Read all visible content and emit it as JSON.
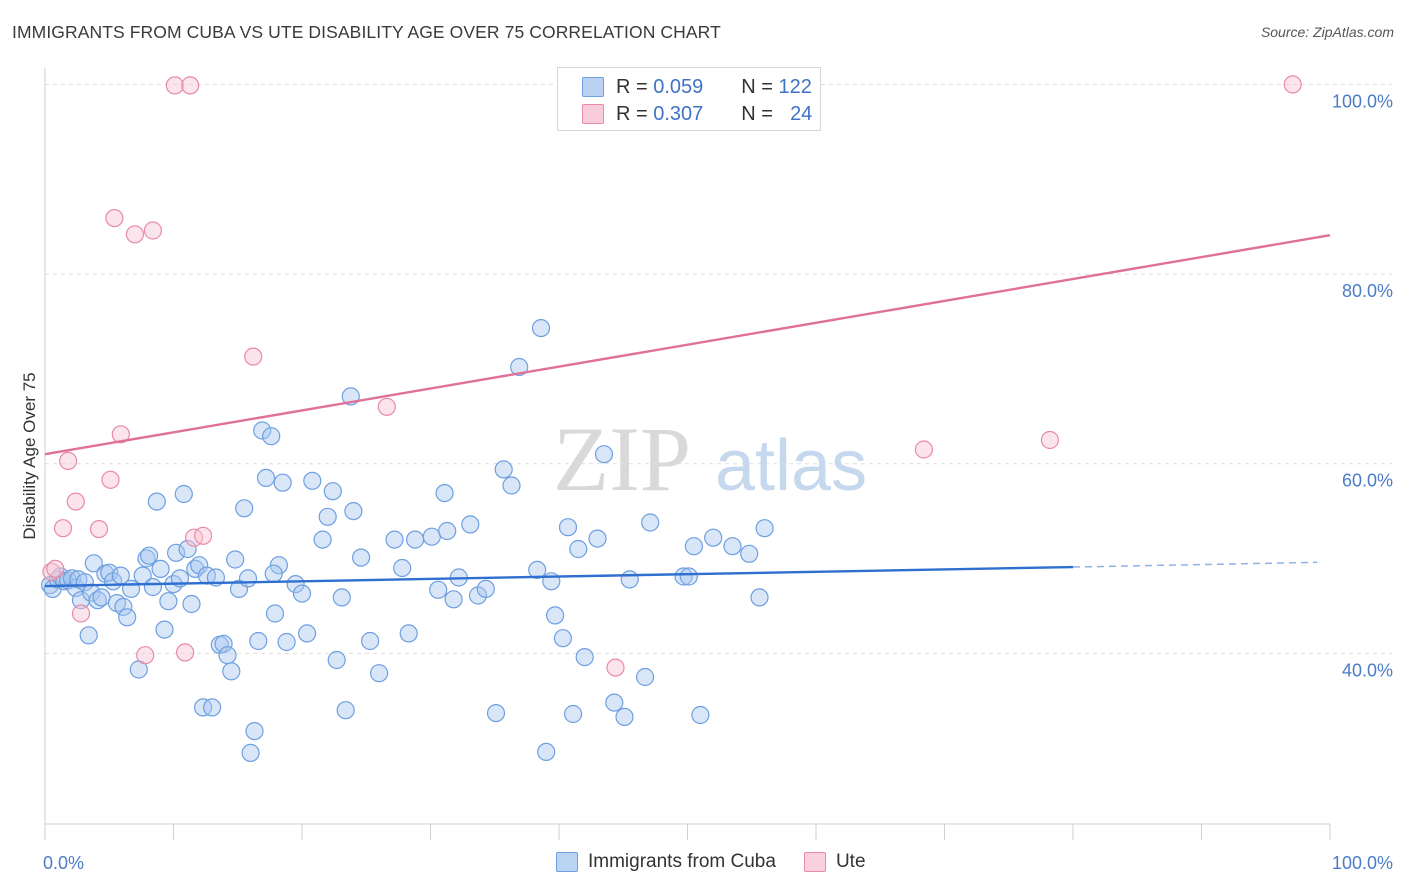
{
  "title": "IMMIGRANTS FROM CUBA VS UTE DISABILITY AGE OVER 75 CORRELATION CHART",
  "source": "Source: ZipAtlas.com",
  "watermark": {
    "zip": "ZIP",
    "atlas": "atlas"
  },
  "legend": {
    "rows": [
      {
        "r_label": "R =",
        "r_value": "0.059",
        "n_label": "N =",
        "n_value": "122",
        "color": "#a9c7ef",
        "border": "#6e9fe0"
      },
      {
        "r_label": "R =",
        "r_value": "0.307",
        "n_label": "N =",
        "n_value": "24",
        "color": "#f7c4d3",
        "border": "#e98aa8"
      }
    ]
  },
  "bottom_legend": [
    {
      "label": "Immigrants from Cuba",
      "color": "#bcd4f3",
      "border": "#6e9fe0"
    },
    {
      "label": "Ute",
      "color": "#f9d0dc",
      "border": "#e98aa8"
    }
  ],
  "chart_data": {
    "type": "scatter",
    "ylabel": "Disability Age Over 75",
    "xlim": [
      0,
      100
    ],
    "ylim": [
      22,
      103
    ],
    "x_tick_labels": [
      {
        "x": 0,
        "label": "0.0%"
      },
      {
        "x": 100,
        "label": "100.0%"
      }
    ],
    "y_tick_labels": [
      {
        "y": 40,
        "label": "40.0%"
      },
      {
        "y": 60,
        "label": "60.0%"
      },
      {
        "y": 80,
        "label": "80.0%"
      },
      {
        "y": 100,
        "label": "100.0%"
      }
    ],
    "y_gridlines": [
      40,
      60,
      80,
      100
    ],
    "series": [
      {
        "name": "Immigrants from Cuba",
        "color": "#6e9fe0",
        "fill": "#a9c7ef",
        "trend": {
          "x0": 0,
          "y0": 47.1,
          "x1": 80,
          "y1": 49.1,
          "dashed_to_x": 99,
          "dashed_to_y": 49.6
        },
        "points": [
          [
            0.4,
            47.2
          ],
          [
            0.6,
            46.8
          ],
          [
            1.0,
            47.8
          ],
          [
            1.2,
            48.1
          ],
          [
            1.5,
            47.6
          ],
          [
            1.8,
            47.7
          ],
          [
            2.1,
            47.9
          ],
          [
            2.4,
            46.9
          ],
          [
            2.6,
            47.8
          ],
          [
            2.8,
            45.6
          ],
          [
            3.1,
            47.5
          ],
          [
            3.4,
            41.9
          ],
          [
            3.6,
            46.4
          ],
          [
            3.8,
            49.5
          ],
          [
            4.1,
            45.6
          ],
          [
            4.4,
            45.9
          ],
          [
            4.7,
            48.4
          ],
          [
            5.0,
            48.5
          ],
          [
            5.3,
            47.6
          ],
          [
            5.6,
            45.3
          ],
          [
            5.9,
            48.2
          ],
          [
            6.1,
            44.9
          ],
          [
            6.4,
            43.8
          ],
          [
            6.7,
            46.8
          ],
          [
            7.3,
            38.3
          ],
          [
            7.6,
            48.2
          ],
          [
            7.9,
            50.0
          ],
          [
            8.1,
            50.3
          ],
          [
            8.4,
            47.0
          ],
          [
            8.7,
            56.0
          ],
          [
            9.0,
            48.9
          ],
          [
            9.3,
            42.5
          ],
          [
            9.6,
            45.5
          ],
          [
            10.0,
            47.3
          ],
          [
            10.2,
            50.6
          ],
          [
            10.5,
            47.9
          ],
          [
            10.8,
            56.8
          ],
          [
            11.1,
            51.0
          ],
          [
            11.4,
            45.2
          ],
          [
            11.7,
            48.9
          ],
          [
            12.0,
            49.3
          ],
          [
            12.3,
            34.3
          ],
          [
            12.6,
            48.2
          ],
          [
            13.0,
            34.3
          ],
          [
            13.3,
            48.0
          ],
          [
            13.6,
            40.9
          ],
          [
            13.9,
            41.0
          ],
          [
            14.2,
            39.8
          ],
          [
            14.5,
            38.1
          ],
          [
            14.8,
            49.9
          ],
          [
            15.1,
            46.8
          ],
          [
            15.5,
            55.3
          ],
          [
            15.8,
            47.9
          ],
          [
            16.3,
            31.8
          ],
          [
            16.6,
            41.3
          ],
          [
            16.9,
            63.5
          ],
          [
            17.2,
            58.5
          ],
          [
            17.6,
            62.9
          ],
          [
            17.9,
            44.2
          ],
          [
            18.2,
            49.3
          ],
          [
            18.5,
            58.0
          ],
          [
            18.8,
            41.2
          ],
          [
            19.5,
            47.3
          ],
          [
            20.0,
            46.3
          ],
          [
            20.4,
            42.1
          ],
          [
            20.8,
            58.2
          ],
          [
            21.6,
            52.0
          ],
          [
            22.0,
            54.4
          ],
          [
            22.4,
            57.1
          ],
          [
            22.7,
            39.3
          ],
          [
            23.1,
            45.9
          ],
          [
            23.4,
            34.0
          ],
          [
            23.8,
            67.1
          ],
          [
            24.0,
            55.0
          ],
          [
            24.6,
            50.1
          ],
          [
            25.3,
            41.3
          ],
          [
            26.0,
            37.9
          ],
          [
            27.2,
            52.0
          ],
          [
            27.8,
            49.0
          ],
          [
            28.3,
            42.1
          ],
          [
            28.8,
            52.0
          ],
          [
            30.1,
            52.3
          ],
          [
            30.6,
            46.7
          ],
          [
            31.1,
            56.9
          ],
          [
            31.3,
            52.9
          ],
          [
            31.8,
            45.7
          ],
          [
            32.2,
            48.0
          ],
          [
            33.1,
            53.6
          ],
          [
            33.7,
            46.1
          ],
          [
            34.3,
            46.8
          ],
          [
            35.1,
            33.7
          ],
          [
            35.7,
            59.4
          ],
          [
            36.3,
            57.7
          ],
          [
            38.3,
            48.8
          ],
          [
            39.0,
            29.6
          ],
          [
            39.4,
            47.6
          ],
          [
            39.7,
            44.0
          ],
          [
            40.3,
            41.6
          ],
          [
            40.7,
            53.3
          ],
          [
            41.1,
            33.6
          ],
          [
            41.5,
            51.0
          ],
          [
            42.0,
            39.6
          ],
          [
            43.0,
            52.1
          ],
          [
            43.5,
            61.0
          ],
          [
            44.3,
            34.8
          ],
          [
            45.1,
            33.3
          ],
          [
            45.5,
            47.8
          ],
          [
            46.7,
            37.5
          ],
          [
            47.1,
            53.8
          ],
          [
            49.7,
            48.1
          ],
          [
            50.1,
            48.1
          ],
          [
            50.5,
            51.3
          ],
          [
            51.0,
            33.5
          ],
          [
            52.0,
            52.2
          ],
          [
            53.5,
            51.3
          ],
          [
            54.8,
            50.5
          ],
          [
            55.6,
            45.9
          ],
          [
            56.0,
            53.2
          ],
          [
            38.6,
            74.3
          ],
          [
            36.9,
            70.2
          ],
          [
            16.0,
            29.5
          ],
          [
            17.8,
            48.4
          ]
        ]
      },
      {
        "name": "Ute",
        "color": "#e98aa8",
        "fill": "#f7c4d3",
        "trend": {
          "x0": 0,
          "y0": 61.0,
          "x1": 100,
          "y1": 84.1
        },
        "points": [
          [
            0.5,
            48.6
          ],
          [
            0.8,
            48.9
          ],
          [
            1.4,
            53.2
          ],
          [
            1.8,
            60.3
          ],
          [
            2.4,
            56.0
          ],
          [
            2.8,
            44.2
          ],
          [
            4.2,
            53.1
          ],
          [
            5.1,
            58.3
          ],
          [
            5.4,
            85.9
          ],
          [
            5.9,
            63.1
          ],
          [
            7.0,
            84.2
          ],
          [
            7.8,
            39.8
          ],
          [
            8.4,
            84.6
          ],
          [
            10.1,
            99.9
          ],
          [
            10.9,
            40.1
          ],
          [
            11.3,
            99.9
          ],
          [
            11.6,
            52.2
          ],
          [
            12.3,
            52.4
          ],
          [
            16.2,
            71.3
          ],
          [
            26.6,
            66.0
          ],
          [
            44.4,
            38.5
          ],
          [
            68.4,
            61.5
          ],
          [
            78.2,
            62.5
          ],
          [
            97.1,
            100.0
          ]
        ]
      }
    ]
  }
}
